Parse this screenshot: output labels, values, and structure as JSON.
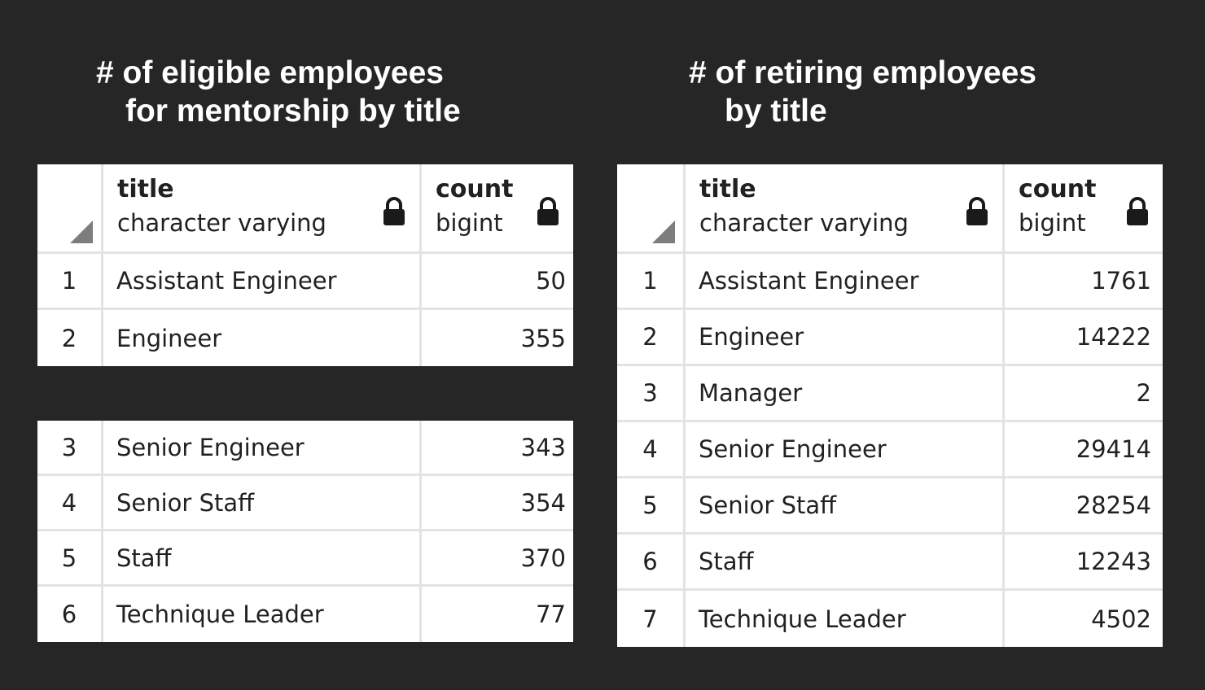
{
  "left": {
    "heading": [
      "# of eligible employees",
      "for mentorship by title"
    ],
    "columns": [
      {
        "name": "title",
        "type": "character varying"
      },
      {
        "name": "count",
        "type": "bigint"
      }
    ],
    "rows": [
      {
        "num": "1",
        "title": "Assistant Engineer",
        "count": "50"
      },
      {
        "num": "2",
        "title": "Engineer",
        "count": "355"
      },
      {
        "num": "3",
        "title": "Senior Engineer",
        "count": "343"
      },
      {
        "num": "4",
        "title": "Senior Staff",
        "count": "354"
      },
      {
        "num": "5",
        "title": "Staff",
        "count": "370"
      },
      {
        "num": "6",
        "title": "Technique Leader",
        "count": "77"
      }
    ]
  },
  "right": {
    "heading": [
      "# of retiring employees",
      "by title"
    ],
    "columns": [
      {
        "name": "title",
        "type": "character varying"
      },
      {
        "name": "count",
        "type": "bigint"
      }
    ],
    "rows": [
      {
        "num": "1",
        "title": "Assistant Engineer",
        "count": "1761"
      },
      {
        "num": "2",
        "title": "Engineer",
        "count": "14222"
      },
      {
        "num": "3",
        "title": "Manager",
        "count": "2"
      },
      {
        "num": "4",
        "title": "Senior Engineer",
        "count": "29414"
      },
      {
        "num": "5",
        "title": "Senior Staff",
        "count": "28254"
      },
      {
        "num": "6",
        "title": "Staff",
        "count": "12243"
      },
      {
        "num": "7",
        "title": "Technique Leader",
        "count": "4502"
      }
    ]
  },
  "icons": {
    "lock": "lock-icon",
    "corner": "sort-corner-icon"
  },
  "colors": {
    "background": "#262626",
    "grid": "#ffffff",
    "gridline": "#e3e3e3",
    "text": "#212121"
  }
}
